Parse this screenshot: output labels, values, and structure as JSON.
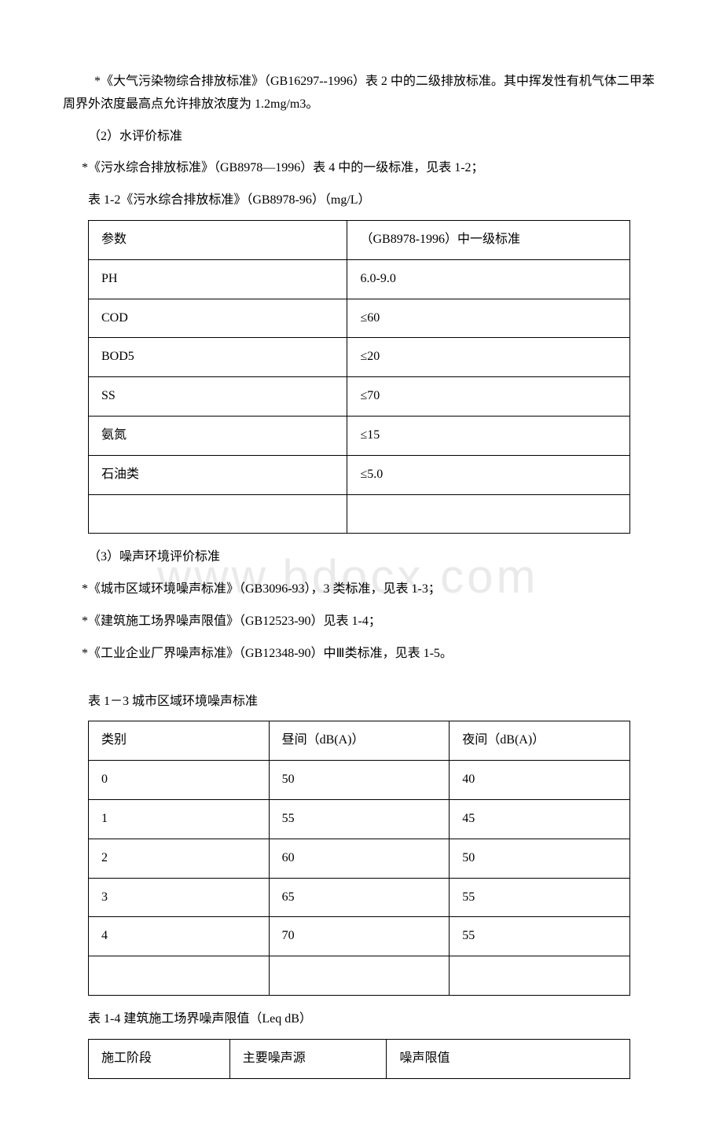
{
  "watermark": "www.bdocx.com",
  "para1": " *《大气污染物综合排放标准》（GB16297--1996）表 2 中的二级排放标准。其中挥发性有机气体二甲苯周界外浓度最高点允许排放浓度为 1.2mg/m3。",
  "para2": "（2）水评价标准",
  "para3": "*《污水综合排放标准》（GB8978—1996）表 4 中的一级标准，见表 1-2；",
  "caption1": "表 1-2《污水综合排放标准》（GB8978-96）（mg/L）",
  "table1": {
    "rows": [
      [
        "参数",
        "（GB8978-1996）中一级标准"
      ],
      [
        "PH",
        "6.0-9.0"
      ],
      [
        "COD",
        "≤60"
      ],
      [
        "BOD5",
        "≤20"
      ],
      [
        "SS",
        "≤70"
      ],
      [
        "氨氮",
        "≤15"
      ],
      [
        "石油类",
        "≤5.0"
      ],
      [
        "",
        ""
      ]
    ]
  },
  "para4": "（3）噪声环境评价标准",
  "para5": "*《城市区域环境噪声标准》（GB3096-93），3 类标准，见表 1-3；",
  "para6": "*《建筑施工场界噪声限值》（GB12523-90）见表 1-4；",
  "para7": "*《工业企业厂界噪声标准》（GB12348-90）中Ⅲ类标准，见表 1-5。",
  "caption2": "表 1－3 城市区域环境噪声标准",
  "table2": {
    "rows": [
      [
        "类别",
        "昼间（dB(A)）",
        "夜间（dB(A)）"
      ],
      [
        "0",
        "50",
        "40"
      ],
      [
        "1",
        "55",
        "45"
      ],
      [
        "2",
        "60",
        "50"
      ],
      [
        "3",
        "65",
        "55"
      ],
      [
        "4",
        "70",
        "55"
      ],
      [
        "",
        "",
        ""
      ]
    ]
  },
  "caption3": "表 1-4 建筑施工场界噪声限值（Leq dB）",
  "table3": {
    "rows": [
      [
        "施工阶段",
        "主要噪声源",
        "噪声限值"
      ]
    ]
  }
}
